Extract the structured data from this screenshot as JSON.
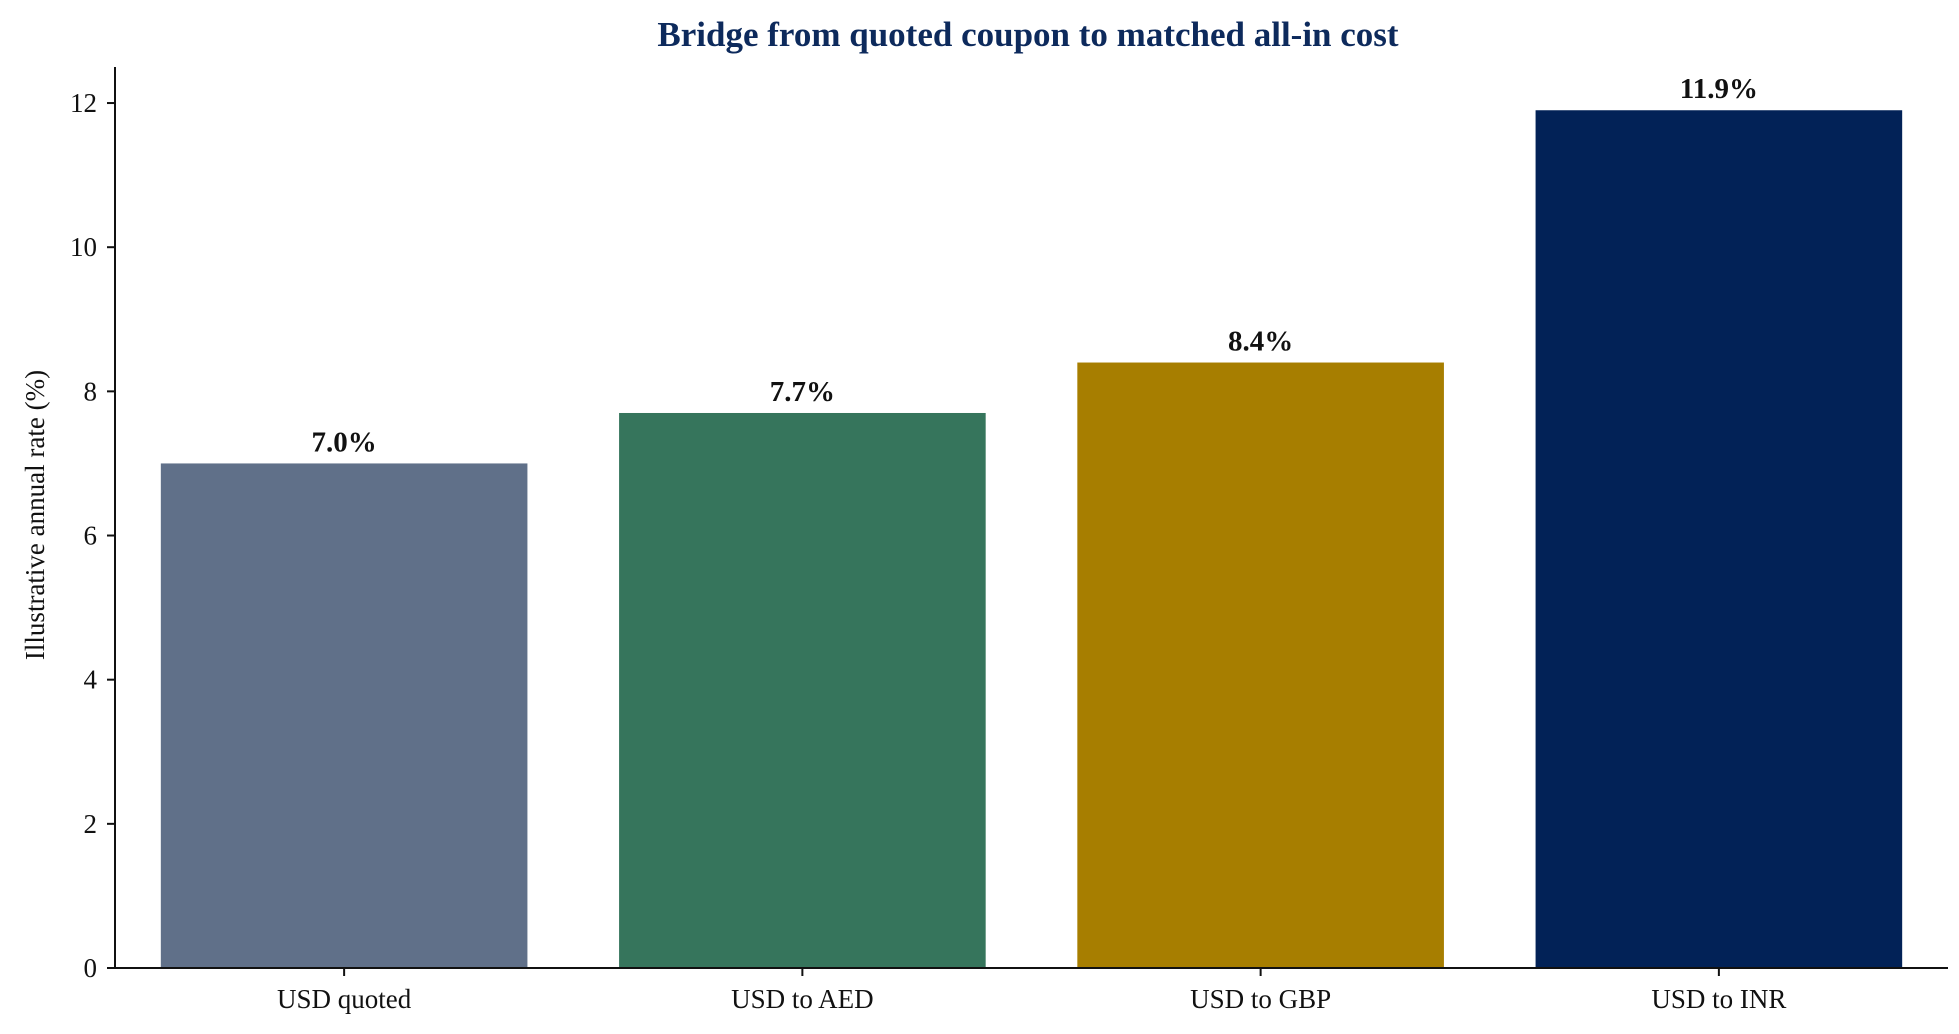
{
  "chart_data": {
    "type": "bar",
    "title": "Bridge from quoted coupon to matched all-in cost",
    "ylabel": "Illustrative annual rate (%)",
    "xlabel": "",
    "categories": [
      "USD quoted",
      "USD to AED",
      "USD to GBP",
      "USD to INR"
    ],
    "values": [
      7.0,
      7.7,
      8.4,
      11.9
    ],
    "value_labels": [
      "7.0%",
      "7.7%",
      "8.4%",
      "11.9%"
    ],
    "colors": [
      "#607089",
      "#36755c",
      "#a77e00",
      "#022257"
    ],
    "ylim": [
      0,
      12.5
    ],
    "yticks": [
      0,
      2,
      4,
      6,
      8,
      10,
      12
    ],
    "grid": false,
    "legend": "none"
  }
}
